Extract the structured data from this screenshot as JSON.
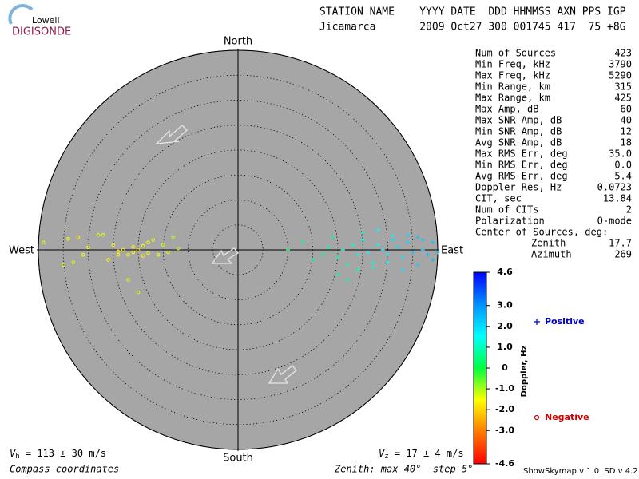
{
  "header": {
    "logo_top": "Lowell",
    "logo_bottom": "DIGISONDE",
    "line1": "STATION NAME    YYYY DATE  DDD HHMMSS AXN PPS IGP",
    "line2": "Jicamarca       2009 Oct27 300 001745 417  75 +8G"
  },
  "stats": [
    [
      "Num of Sources",
      "423"
    ],
    [
      "Min Freq, kHz",
      "3790"
    ],
    [
      "Max Freq, kHz",
      "5290"
    ],
    [
      "Min Range, km",
      "315"
    ],
    [
      "Max Range, km",
      "425"
    ],
    [
      "Max Amp, dB",
      "60"
    ],
    [
      "Max SNR Amp, dB",
      "40"
    ],
    [
      "Min SNR Amp, dB",
      "12"
    ],
    [
      "Avg SNR Amp, dB",
      "18"
    ],
    [
      "Max RMS Err, deg",
      "35.0"
    ],
    [
      "Min RMS Err, deg",
      "0.0"
    ],
    [
      "Avg RMS Err, deg",
      "5.4"
    ],
    [
      "Doppler Res, Hz",
      "0.0723"
    ],
    [
      "CIT, sec",
      "13.84"
    ],
    [
      "Num of CITs",
      "2"
    ],
    [
      "Polarization",
      "O-mode"
    ]
  ],
  "center": {
    "label": "Center of Sources, deg:",
    "rows": [
      [
        "Zenith",
        "17.7"
      ],
      [
        "Azimuth",
        "269"
      ]
    ]
  },
  "footer": {
    "vh_sym": "V",
    "vh_sub": "h",
    "vh_text": " = 113 ± 30 m/s",
    "vz_sym": "V",
    "vz_sub": "z",
    "vz_text": " = 17 ± 4 m/s",
    "coords": "Compass coordinates",
    "zenith": "Zenith: max 40°  step 5°",
    "version": "ShowSkymap v 1.0  SD v 4.2"
  },
  "chart_data": {
    "type": "skymap",
    "directions": {
      "north": "North",
      "south": "South",
      "east": "East",
      "west": "West"
    },
    "rlim": [
      0,
      40
    ],
    "rticks": [
      5,
      10,
      15,
      20,
      25,
      30,
      35,
      40
    ],
    "colorbar_label": "Doppler, Hz",
    "clim": [
      -4.6,
      4.6
    ],
    "colormap": [
      "#ff0000",
      "#ff7a00",
      "#ffff00",
      "#00ff40",
      "#00ffff",
      "#0090ff",
      "#0000ff"
    ],
    "cticks": [
      4.6,
      {
        "value": 3,
        "label": "3.0"
      },
      {
        "value": 2,
        "label": "2.0"
      },
      {
        "value": 1,
        "label": "1.0"
      },
      0,
      {
        "value": -1,
        "label": "-1.0"
      },
      {
        "value": -2,
        "label": "-2.0"
      },
      {
        "value": -3,
        "label": "-3.0"
      },
      -4.6
    ],
    "series": [
      {
        "name": "Positive",
        "color": "#0000cc",
        "marker": "+",
        "x": [
          10,
          13,
          15,
          17,
          18,
          19,
          20,
          21,
          22,
          23,
          24,
          25,
          26,
          27,
          28,
          29,
          30,
          31,
          32,
          33,
          34,
          35,
          36,
          37,
          38,
          39,
          40,
          22,
          24,
          27,
          30,
          33,
          36,
          25,
          28,
          31,
          34,
          37,
          39,
          20
        ],
        "y": [
          0,
          1.5,
          -2,
          -1,
          0.5,
          2.5,
          -1.5,
          0,
          -3,
          1,
          -1,
          2,
          -0.5,
          -2.5,
          1,
          0,
          -1,
          2,
          0.5,
          -1.5,
          1.5,
          -0.5,
          2.5,
          0,
          -1,
          1.5,
          -0.5,
          -6,
          -4,
          -3.5,
          -2.5,
          -4,
          -3,
          3.5,
          4,
          2.8,
          3,
          2,
          -2,
          -5
        ],
        "doppler": [
          0.3,
          0.5,
          0.8,
          0.6,
          0.9,
          0.7,
          1.0,
          1.1,
          0.9,
          1.2,
          1.3,
          1.4,
          1.5,
          1.2,
          1.6,
          1.7,
          1.8,
          1.9,
          2.0,
          1.8,
          2.1,
          2.2,
          2.3,
          2.2,
          2.4,
          2.3,
          2.5,
          0.8,
          1.0,
          1.2,
          1.5,
          1.9,
          2.2,
          1.1,
          1.4,
          1.7,
          2.0,
          2.2,
          2.4,
          0.6
        ]
      },
      {
        "name": "Negative",
        "color": "#cc0000",
        "marker": "o",
        "x": [
          -39,
          -34,
          -33,
          -32,
          -30,
          -27,
          -25,
          -24,
          -23,
          -22,
          -21,
          -20,
          -19,
          -18,
          -17,
          -16,
          -15,
          -14,
          -13,
          -22,
          -20,
          -18,
          -26,
          -28,
          -35,
          -31,
          -24,
          -21,
          -19,
          -12
        ],
        "y": [
          1.5,
          2.2,
          -2.5,
          2.5,
          0.5,
          3,
          1,
          -1,
          0,
          -1,
          -0.5,
          0,
          0.8,
          -0.6,
          2,
          -1,
          1,
          -0.5,
          2.5,
          -6,
          -8.5,
          1.5,
          -2,
          3,
          -3,
          -1,
          -0.3,
          0.6,
          -1.2,
          0.3
        ],
        "doppler": [
          -1.4,
          -1.5,
          -1.3,
          -1.6,
          -1.5,
          -1.4,
          -1.7,
          -1.6,
          -1.8,
          -1.7,
          -1.5,
          -1.9,
          -1.6,
          -1.4,
          -1.3,
          -1.5,
          -1.2,
          -1.4,
          -1.1,
          -1.3,
          -1.2,
          -1.5,
          -1.6,
          -1.3,
          -1.4,
          -1.5,
          -1.8,
          -1.7,
          -1.6,
          -1.2
        ]
      }
    ]
  }
}
